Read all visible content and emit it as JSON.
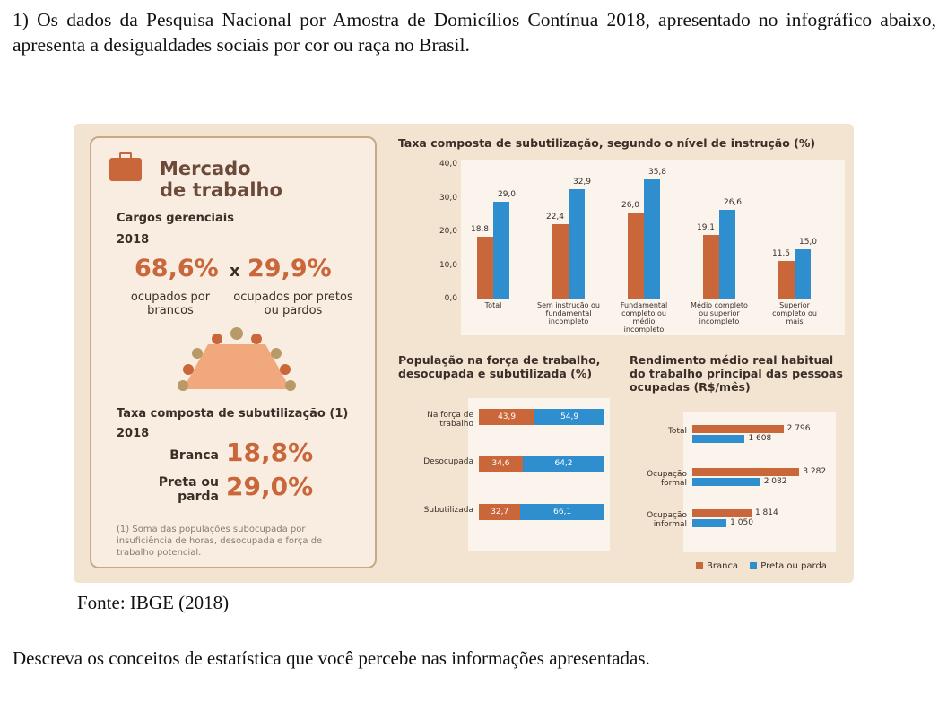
{
  "question": "1) Os dados da Pesquisa Nacional por Amostra de Domicílios Contínua 2018, apresentado no infográfico abaixo, apresenta a desigualdades sociais por cor ou raça no Brasil.",
  "source": "Fonte: IBGE (2018)",
  "prompt": "Descreva os conceitos de estatística que você percebe nas informações apresentadas.",
  "colors": {
    "branca": "#c9663a",
    "preta_parda": "#2f8fce"
  },
  "mercado": {
    "title_line1": "Mercado",
    "title_line2": "de trabalho",
    "cargos_label": "Cargos gerenciais",
    "year": "2018",
    "pct_brancos": "68,6%",
    "times": "x",
    "pct_pretos": "29,9%",
    "occ_brancos": "ocupados por brancos",
    "occ_pretos": "ocupados por pretos ou pardos",
    "sub_label": "Taxa composta de subutilização (1)",
    "sub_year": "2018",
    "branca_label": "Branca",
    "branca_value": "18,8%",
    "preta_label": "Preta ou parda",
    "preta_value": "29,0%",
    "footnote": "(1) Soma das populações subocupada por insuficiência de horas, desocupada e força de trabalho potencial."
  },
  "chart_data": [
    {
      "type": "bar",
      "title": "Taxa composta de subutilização, segundo o nível de instrução (%)",
      "categories": [
        "Total",
        "Sem instrução ou fundamental incompleto",
        "Fundamental completo ou médio incompleto",
        "Médio completo ou superior incompleto",
        "Superior completo ou mais"
      ],
      "category_labels": [
        "Total",
        "Sem instrução ou fundamental incompleto",
        "Fundamental completo ou médio incompleto",
        "Médio completo ou superior incompleto",
        "Superior completo ou mais"
      ],
      "series": [
        {
          "name": "Branca",
          "values": [
            18.8,
            22.4,
            26.0,
            19.1,
            11.5
          ],
          "labels": [
            "18,8",
            "22,4",
            "26,0",
            "19,1",
            "11,5"
          ]
        },
        {
          "name": "Preta ou parda",
          "values": [
            29.0,
            32.9,
            35.8,
            26.6,
            15.0
          ],
          "labels": [
            "29,0",
            "32,9",
            "35,8",
            "26,6",
            "15,0"
          ]
        }
      ],
      "ylim": [
        0,
        40
      ],
      "yticks": [
        "0,0",
        "10,0",
        "20,0",
        "30,0",
        "40,0"
      ]
    },
    {
      "type": "bar",
      "orientation": "horizontal-stacked",
      "title": "População na força de trabalho, desocupada e subutilizada (%)",
      "categories": [
        "Na força de trabalho",
        "Desocupada",
        "Subutilizada"
      ],
      "series": [
        {
          "name": "Branca",
          "values": [
            43.9,
            34.6,
            32.7
          ],
          "labels": [
            "43,9",
            "34,6",
            "32,7"
          ]
        },
        {
          "name": "Preta ou parda",
          "values": [
            54.9,
            64.2,
            66.1
          ],
          "labels": [
            "54,9",
            "64,2",
            "66,1"
          ]
        }
      ]
    },
    {
      "type": "bar",
      "orientation": "horizontal",
      "title": "Rendimento médio real habitual do trabalho principal das pessoas ocupadas (R$/mês)",
      "categories": [
        "Total",
        "Ocupação formal",
        "Ocupação informal"
      ],
      "series": [
        {
          "name": "Branca",
          "values": [
            2796,
            3282,
            1814
          ],
          "labels": [
            "2 796",
            "3 282",
            "1 814"
          ]
        },
        {
          "name": "Preta ou parda",
          "values": [
            1608,
            2082,
            1050
          ],
          "labels": [
            "1 608",
            "2 082",
            "1 050"
          ]
        }
      ],
      "xlim": [
        0,
        3300
      ]
    }
  ],
  "legend": {
    "branca": "Branca",
    "preta": "Preta ou parda"
  }
}
